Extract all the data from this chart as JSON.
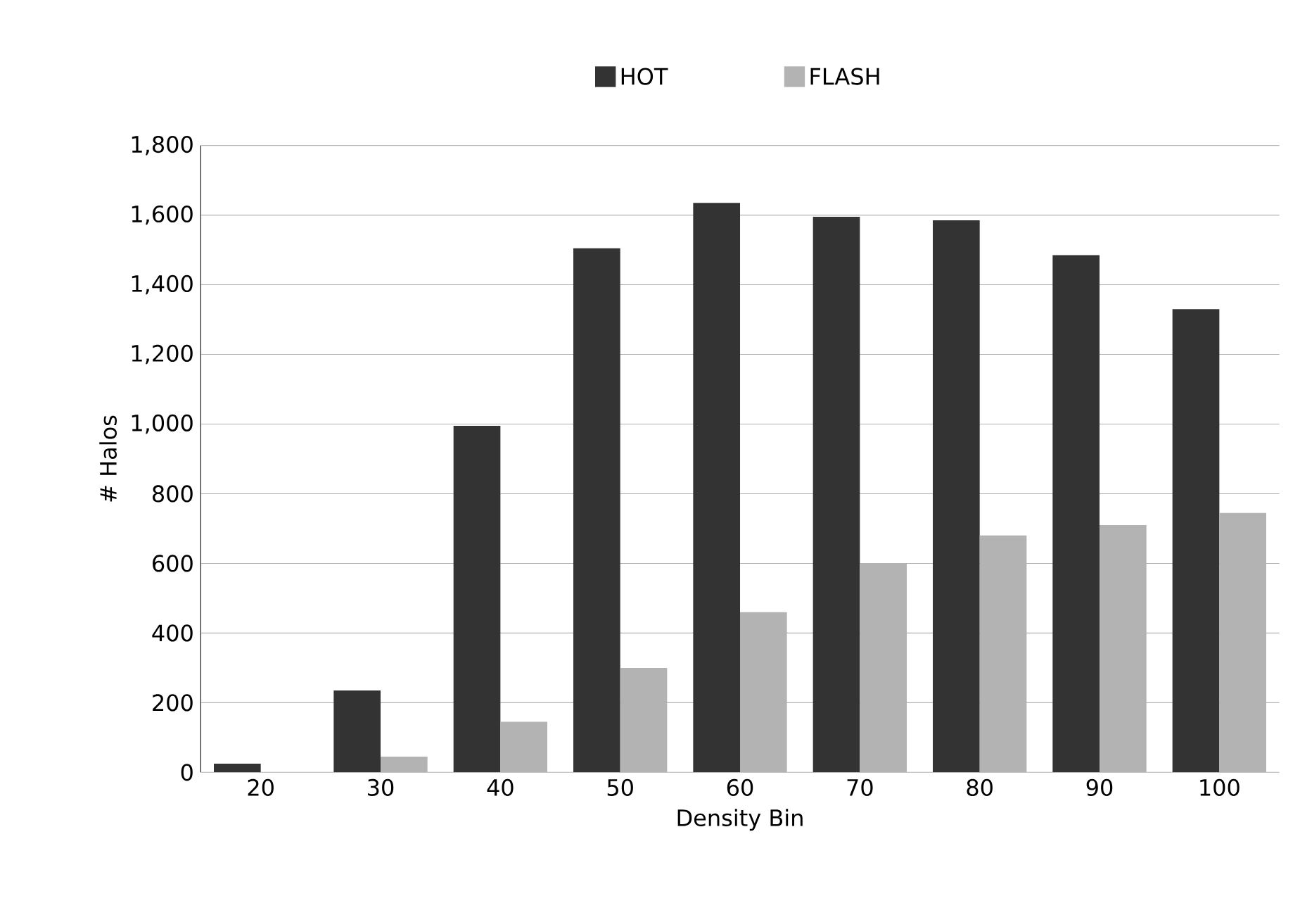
{
  "chart_data": {
    "type": "bar",
    "xlabel": "Density Bin",
    "ylabel": "# Halos",
    "categories": [
      "20",
      "30",
      "40",
      "50",
      "60",
      "70",
      "80",
      "90",
      "100"
    ],
    "series": [
      {
        "name": "HOT",
        "color": "#333333",
        "values": [
          25,
          235,
          995,
          1505,
          1635,
          1595,
          1585,
          1485,
          1330
        ]
      },
      {
        "name": "FLASH",
        "color": "#b3b3b3",
        "values": [
          0,
          45,
          145,
          300,
          460,
          600,
          680,
          710,
          745
        ]
      }
    ],
    "ylim": [
      0,
      1800
    ],
    "yticks": [
      {
        "value": 0,
        "label": "0"
      },
      {
        "value": 200,
        "label": "200"
      },
      {
        "value": 400,
        "label": "400"
      },
      {
        "value": 600,
        "label": "600"
      },
      {
        "value": 800,
        "label": "800"
      },
      {
        "value": 1000,
        "label": "1,000"
      },
      {
        "value": 1200,
        "label": "1,200"
      },
      {
        "value": 1400,
        "label": "1,400"
      },
      {
        "value": 1600,
        "label": "1,600"
      },
      {
        "value": 1800,
        "label": "1,800"
      }
    ],
    "grid": "y",
    "legend": "top"
  }
}
